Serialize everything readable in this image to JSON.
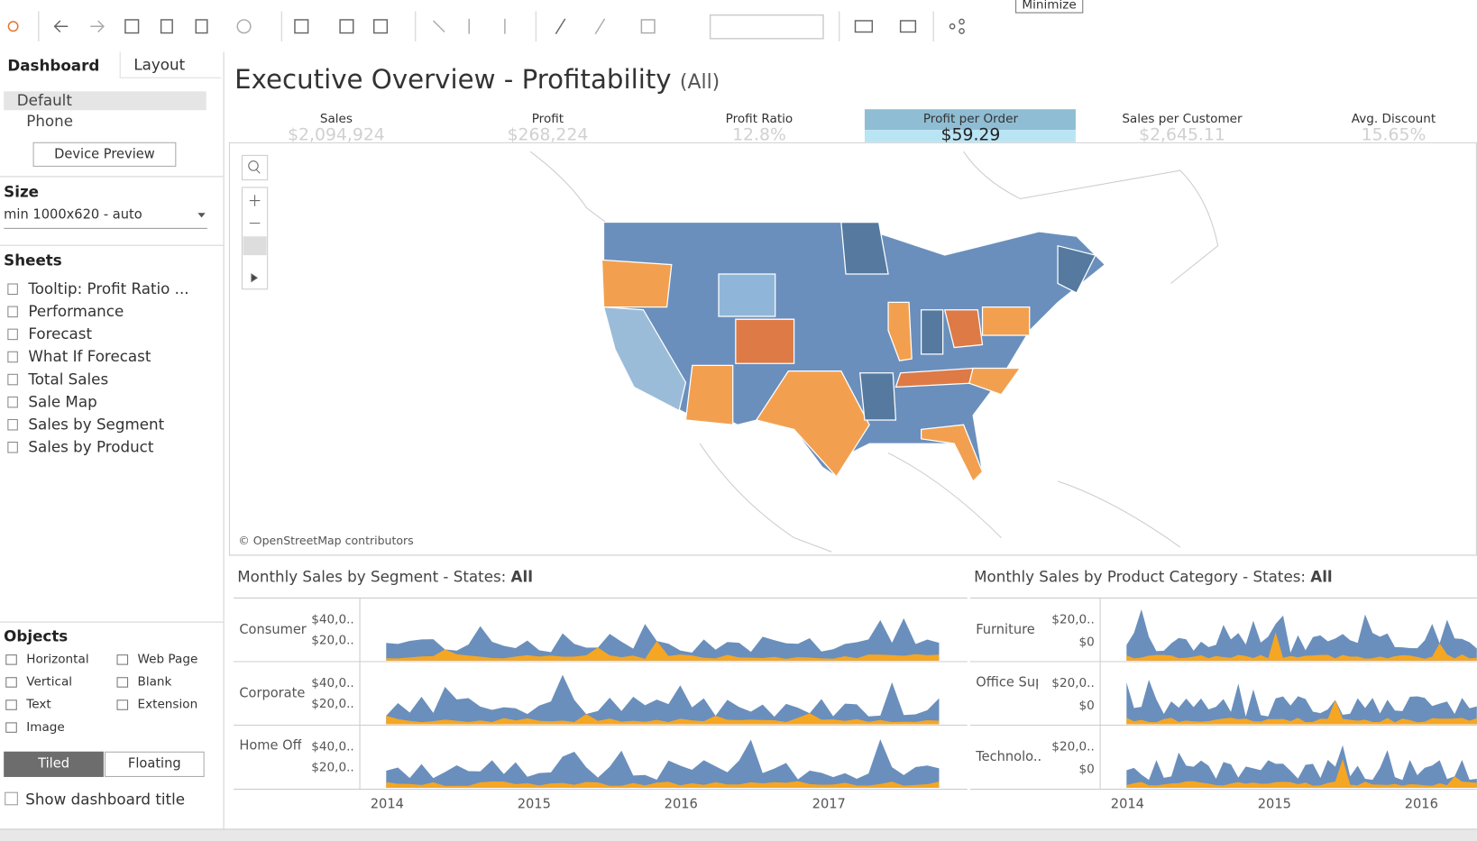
{
  "toolbar": {
    "tooltip": "Minimize"
  },
  "sidebar": {
    "tabs": [
      "Dashboard",
      "Layout"
    ],
    "devices": [
      "Default",
      "Phone"
    ],
    "device_preview": "Device Preview",
    "size": {
      "heading": "Size",
      "value": "min 1000x620 - auto"
    },
    "sheets": {
      "heading": "Sheets",
      "items": [
        "Tooltip: Profit Ratio ...",
        "Performance",
        "Forecast",
        "What If Forecast",
        "Total Sales",
        "Sale Map",
        "Sales by Segment",
        "Sales by Product"
      ]
    },
    "objects": {
      "heading": "Objects",
      "items": [
        "Horizontal",
        "Web Page",
        "Vertical",
        "Blank",
        "Text",
        "Extension",
        "Image"
      ]
    },
    "layout_modes": [
      "Tiled",
      "Floating"
    ],
    "show_title": "Show dashboard title"
  },
  "dashboard": {
    "title": "Executive Overview - Profitability",
    "title_filter": "(All)",
    "kpis": [
      {
        "label": "Sales",
        "value": "$2,094,924"
      },
      {
        "label": "Profit",
        "value": "$268,224"
      },
      {
        "label": "Profit Ratio",
        "value": "12.8%"
      },
      {
        "label": "Profit per Order",
        "value": "$59.29"
      },
      {
        "label": "Sales per Customer",
        "value": "$2,645.11"
      },
      {
        "label": "Avg. Discount",
        "value": "15.65%"
      }
    ],
    "map_attribution": "© OpenStreetMap contributors",
    "panels": [
      {
        "title": "Monthly Sales by Segment - States:",
        "title_filter": "All",
        "rows": [
          {
            "label": "Consumer",
            "ticks": [
              "$40,0..",
              "$20,0.."
            ]
          },
          {
            "label": "Corporate",
            "ticks": [
              "$40,0..",
              "$20,0.."
            ]
          },
          {
            "label": "Home Office",
            "ticks": [
              "$40,0..",
              "$20,0.."
            ]
          }
        ],
        "years": [
          "2014",
          "2015",
          "2016",
          "2017"
        ]
      },
      {
        "title": "Monthly Sales by Product Category - States:",
        "title_filter": "All",
        "rows": [
          {
            "label": "Furniture",
            "ticks": [
              "$20,0..",
              "$0"
            ]
          },
          {
            "label": "Office Supplies",
            "ticks": [
              "$20,0..",
              "$0"
            ]
          },
          {
            "label": "Technolo..",
            "ticks": [
              "$20,0..",
              "$0"
            ]
          }
        ],
        "years": [
          "2014",
          "2015",
          "2016"
        ]
      }
    ]
  }
}
